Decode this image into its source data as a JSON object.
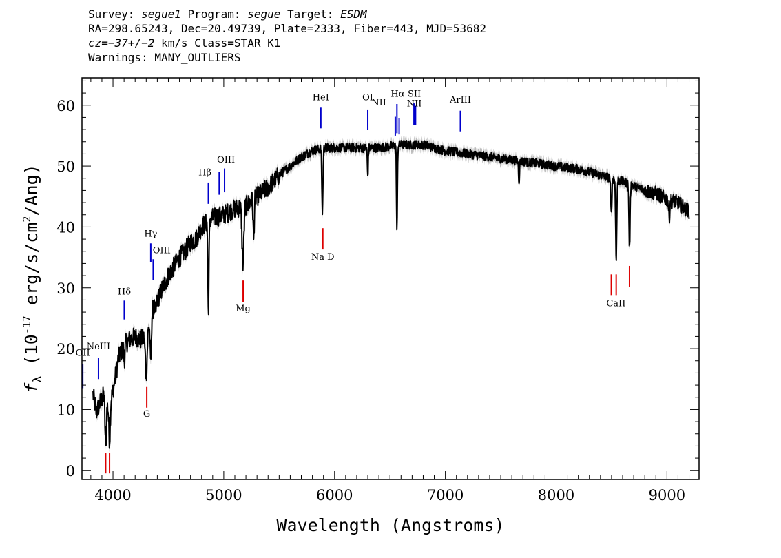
{
  "header": {
    "line1": [
      {
        "text": "Survey: ",
        "italic": false
      },
      {
        "text": "segue1",
        "italic": true
      },
      {
        "text": " Program: ",
        "italic": false
      },
      {
        "text": "segue",
        "italic": true
      },
      {
        "text": " Target: ",
        "italic": false
      },
      {
        "text": "ESDM",
        "italic": true
      }
    ],
    "line2": "RA=298.65243, Dec=20.49739, Plate=2333, Fiber=443, MJD=53682",
    "line3": [
      {
        "text": "cz=−37+/−2",
        "italic": true
      },
      {
        "text": " km/s Class=STAR K1",
        "italic": false
      }
    ],
    "line4": "Warnings: MANY_OUTLIERS"
  },
  "chart_data": {
    "type": "line",
    "title": "",
    "xlabel": "Wavelength (Angstroms)",
    "ylabel": "f_λ (10^-17 erg/s/cm^2/Ang)",
    "ylabel_parts": {
      "symbol": "f",
      "subscript": "λ",
      "base": "(10",
      "exp_low": "-17",
      "mid": " erg/s/cm",
      "exp_2": "2",
      "tail": "/Ang)"
    },
    "xlim": [
      3720,
      9290
    ],
    "ylim": [
      -1.5,
      64.5
    ],
    "xticks": [
      4000,
      5000,
      6000,
      7000,
      8000,
      9000
    ],
    "xtick_labels": [
      "4000",
      "5000",
      "6000",
      "7000",
      "8000",
      "9000"
    ],
    "yticks": [
      0,
      10,
      20,
      30,
      40,
      50,
      60
    ],
    "ytick_labels": [
      "0",
      "10",
      "20",
      "30",
      "40",
      "50",
      "60"
    ],
    "spectrum_color": "#000000",
    "error_color": "#bbbbbb",
    "emission_color": "#0000cc",
    "absorption_color": "#dd0000",
    "continuum": [
      [
        3820,
        12.5
      ],
      [
        3850,
        9.5
      ],
      [
        3880,
        11
      ],
      [
        3920,
        12.5
      ],
      [
        3960,
        10
      ],
      [
        4000,
        13
      ],
      [
        4050,
        18.5
      ],
      [
        4100,
        20.5
      ],
      [
        4150,
        21.5
      ],
      [
        4200,
        22
      ],
      [
        4250,
        21.5
      ],
      [
        4300,
        22
      ],
      [
        4350,
        26
      ],
      [
        4400,
        28
      ],
      [
        4450,
        30
      ],
      [
        4500,
        32
      ],
      [
        4550,
        33.5
      ],
      [
        4600,
        35
      ],
      [
        4650,
        36
      ],
      [
        4700,
        37.5
      ],
      [
        4750,
        38
      ],
      [
        4800,
        40
      ],
      [
        4900,
        41.5
      ],
      [
        5000,
        42
      ],
      [
        5100,
        43
      ],
      [
        5200,
        43.5
      ],
      [
        5300,
        45
      ],
      [
        5400,
        46.5
      ],
      [
        5500,
        48.5
      ],
      [
        5600,
        50
      ],
      [
        5700,
        51.5
      ],
      [
        5800,
        52.5
      ],
      [
        5900,
        53
      ],
      [
        6000,
        53
      ],
      [
        6200,
        53
      ],
      [
        6400,
        53
      ],
      [
        6600,
        53.5
      ],
      [
        6800,
        53.5
      ],
      [
        7000,
        52.5
      ],
      [
        7200,
        52
      ],
      [
        7400,
        51.5
      ],
      [
        7600,
        51
      ],
      [
        7800,
        50.5
      ],
      [
        8000,
        50
      ],
      [
        8200,
        49.5
      ],
      [
        8400,
        48.5
      ],
      [
        8600,
        47.5
      ],
      [
        8800,
        46
      ],
      [
        8900,
        45.5
      ],
      [
        9000,
        44.5
      ],
      [
        9100,
        44
      ],
      [
        9200,
        42.5
      ]
    ],
    "absorption_dips": [
      [
        3934,
        4.2,
        6
      ],
      [
        3969,
        5,
        6
      ],
      [
        4102,
        18,
        5
      ],
      [
        4227,
        21.5,
        4
      ],
      [
        4300,
        16,
        8
      ],
      [
        4340,
        18,
        6
      ],
      [
        4383,
        25.5,
        5
      ],
      [
        4861,
        26.5,
        5
      ],
      [
        5173,
        34,
        8
      ],
      [
        5270,
        38,
        5
      ],
      [
        5890,
        42.5,
        5
      ],
      [
        6300,
        48.5,
        4
      ],
      [
        6563,
        39.5,
        4
      ],
      [
        7665,
        47.5,
        4
      ],
      [
        8498,
        42,
        5
      ],
      [
        8542,
        35,
        5
      ],
      [
        8662,
        36.5,
        5
      ],
      [
        9020,
        41.5,
        5
      ]
    ],
    "emission_lines": [
      {
        "label": "OII",
        "wavelength": 3727,
        "ybot": 13.5,
        "ytop": 17.5,
        "lx": 3727,
        "ly": 18.8
      },
      {
        "label": "NeIII",
        "wavelength": 3869,
        "ybot": 15,
        "ytop": 18.5,
        "lx": 3869,
        "ly": 19.9
      },
      {
        "label": "Hδ",
        "wavelength": 4102,
        "ybot": 24.8,
        "ytop": 27.9,
        "lx": 4102,
        "ly": 28.9
      },
      {
        "label": "Hγ",
        "wavelength": 4341,
        "ybot": 34.2,
        "ytop": 37.3,
        "lx": 4341,
        "ly": 38.4
      },
      {
        "label": "OIII",
        "wavelength": 4363,
        "ybot": 31.3,
        "ytop": 34.7,
        "lx": 4440,
        "ly": 35.7
      },
      {
        "label": "Hβ",
        "wavelength": 4861,
        "ybot": 43.8,
        "ytop": 47.3,
        "lx": 4830,
        "ly": 48.5
      },
      {
        "label": "OIII",
        "wavelength": 4959,
        "ybot": 45.3,
        "ytop": 49.0,
        "lx": 5020,
        "ly": 50.6
      },
      {
        "label": "OIII",
        "wavelength": 5007,
        "ybot": 45.7,
        "ytop": 49.6,
        "lx": null,
        "ly": null
      },
      {
        "label": "HeI",
        "wavelength": 5876,
        "ybot": 56.2,
        "ytop": 59.6,
        "lx": 5876,
        "ly": 60.8
      },
      {
        "label": "OI",
        "wavelength": 6300,
        "ybot": 56.0,
        "ytop": 59.3,
        "lx": 6300,
        "ly": 60.8
      },
      {
        "label": "NII",
        "wavelength": 6548,
        "ybot": 55.0,
        "ytop": 58.1,
        "lx": 6400,
        "ly": 60.0
      },
      {
        "label": "Hα",
        "wavelength": 6563,
        "ybot": 55.4,
        "ytop": 60.2,
        "lx": 6570,
        "ly": 61.4
      },
      {
        "label": "NII",
        "wavelength": 6583,
        "ybot": 55.2,
        "ytop": 57.9,
        "lx": null,
        "ly": null
      },
      {
        "label": "SII",
        "wavelength": 6717,
        "ybot": 56.8,
        "ytop": 60.3,
        "lx": 6720,
        "ly": 61.4
      },
      {
        "label": "NII",
        "wavelength": 6731,
        "ybot": 56.8,
        "ytop": 59.9,
        "lx": 6720,
        "ly": 59.8
      },
      {
        "label": "ArIII",
        "wavelength": 7136,
        "ybot": 55.7,
        "ytop": 59.1,
        "lx": 7136,
        "ly": 60.4
      }
    ],
    "absorption_lines": [
      {
        "label": "",
        "wavelength": 3934,
        "ybot": -0.5,
        "ytop": 2.8,
        "lx": null,
        "ly": null
      },
      {
        "label": "",
        "wavelength": 3969,
        "ybot": -0.5,
        "ytop": 2.8,
        "lx": null,
        "ly": null
      },
      {
        "label": "G",
        "wavelength": 4305,
        "ybot": 10.3,
        "ytop": 13.7,
        "lx": 4305,
        "ly": 8.8
      },
      {
        "label": "Mg",
        "wavelength": 5175,
        "ybot": 27.7,
        "ytop": 31.2,
        "lx": 5175,
        "ly": 26.1
      },
      {
        "label": "Na D",
        "wavelength": 5894,
        "ybot": 36.3,
        "ytop": 39.8,
        "lx": 5894,
        "ly": 34.6
      },
      {
        "label": "CaII",
        "wavelength": 8498,
        "ybot": 28.8,
        "ytop": 32.2,
        "lx": 8540,
        "ly": 27.0
      },
      {
        "label": "",
        "wavelength": 8542,
        "ybot": 28.8,
        "ytop": 32.2,
        "lx": null,
        "ly": null
      },
      {
        "label": "",
        "wavelength": 8662,
        "ybot": 30.2,
        "ytop": 33.6,
        "lx": null,
        "ly": null
      }
    ]
  }
}
